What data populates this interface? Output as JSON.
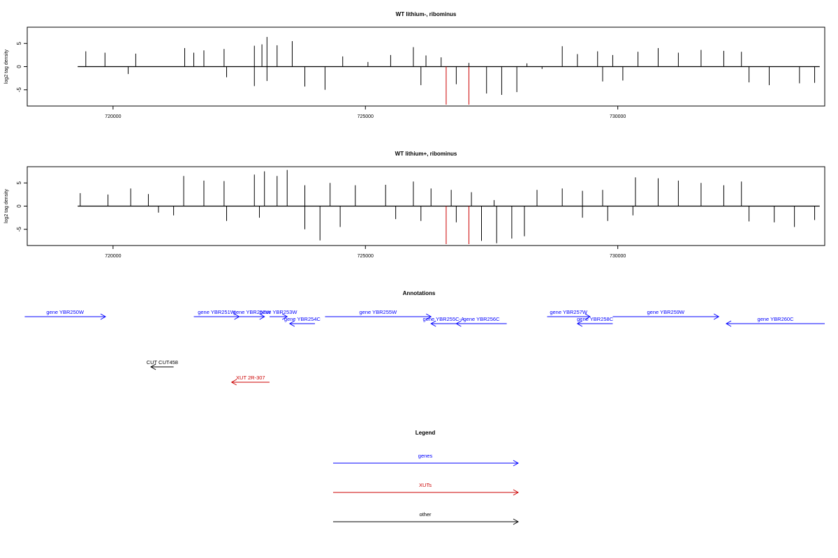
{
  "chart_data": [
    {
      "type": "bar",
      "title": "WT lithium-, ribominus",
      "ylabel": "log2 tag density",
      "xlim": [
        718300,
        734100
      ],
      "ylim": [
        -8.5,
        8.5
      ],
      "xticks": [
        720000,
        725000,
        730000
      ],
      "yticks": [
        5,
        0,
        -5
      ],
      "grid": false,
      "series": [
        {
          "strand": "plus",
          "color": "#000000",
          "values": [
            [
              719460,
              3.3
            ],
            [
              719840,
              3.0
            ],
            [
              720450,
              2.8
            ],
            [
              721420,
              4.0
            ],
            [
              721600,
              3.0
            ],
            [
              721800,
              3.5
            ],
            [
              722200,
              3.8
            ],
            [
              722800,
              4.5
            ],
            [
              722950,
              4.8
            ],
            [
              723050,
              6.4
            ],
            [
              723250,
              4.6
            ],
            [
              723550,
              5.5
            ],
            [
              724550,
              2.2
            ],
            [
              725050,
              1.0
            ],
            [
              725500,
              2.5
            ],
            [
              725950,
              4.2
            ],
            [
              726200,
              2.4
            ],
            [
              726500,
              2.0
            ],
            [
              727050,
              0.8
            ],
            [
              728200,
              0.7
            ],
            [
              728900,
              4.4
            ],
            [
              729200,
              2.7
            ],
            [
              729600,
              3.3
            ],
            [
              729900,
              2.5
            ],
            [
              730400,
              3.2
            ],
            [
              730800,
              4.0
            ],
            [
              731200,
              3.0
            ],
            [
              731650,
              3.6
            ],
            [
              732100,
              3.4
            ],
            [
              732450,
              3.2
            ]
          ]
        },
        {
          "strand": "minus",
          "color": "#000000",
          "values": [
            [
              720300,
              -1.6
            ],
            [
              722250,
              -2.3
            ],
            [
              722800,
              -4.2
            ],
            [
              723050,
              -3.1
            ],
            [
              723800,
              -4.3
            ],
            [
              724200,
              -5.0
            ],
            [
              726100,
              -4.0
            ],
            [
              726800,
              -3.8
            ],
            [
              727400,
              -5.8
            ],
            [
              727700,
              -6.1
            ],
            [
              728000,
              -5.5
            ],
            [
              728500,
              -0.5
            ],
            [
              729700,
              -3.2
            ],
            [
              730100,
              -3.0
            ],
            [
              732600,
              -3.4
            ],
            [
              733000,
              -4.0
            ],
            [
              733600,
              -3.6
            ],
            [
              733900,
              -3.5
            ]
          ]
        },
        {
          "strand": "minus",
          "color": "#cc0000",
          "values": [
            [
              726600,
              -8.2
            ],
            [
              727050,
              -8.2
            ]
          ]
        }
      ]
    },
    {
      "type": "bar",
      "title": "WT lithium+, ribominus",
      "ylabel": "log2 tag density",
      "xlim": [
        718300,
        734100
      ],
      "ylim": [
        -8.5,
        8.5
      ],
      "xticks": [
        720000,
        725000,
        730000
      ],
      "yticks": [
        5,
        0,
        -5
      ],
      "grid": false,
      "series": [
        {
          "strand": "plus",
          "color": "#000000",
          "values": [
            [
              719350,
              2.8
            ],
            [
              719900,
              2.5
            ],
            [
              720350,
              3.8
            ],
            [
              720700,
              2.6
            ],
            [
              721400,
              6.5
            ],
            [
              721800,
              5.5
            ],
            [
              722200,
              5.4
            ],
            [
              722800,
              6.8
            ],
            [
              723000,
              7.5
            ],
            [
              723250,
              6.5
            ],
            [
              723450,
              7.8
            ],
            [
              723800,
              4.5
            ],
            [
              724300,
              5.0
            ],
            [
              724800,
              4.5
            ],
            [
              725400,
              4.6
            ],
            [
              725950,
              5.3
            ],
            [
              726300,
              3.8
            ],
            [
              726700,
              3.5
            ],
            [
              727100,
              3.0
            ],
            [
              727550,
              1.3
            ],
            [
              728400,
              3.5
            ],
            [
              728900,
              3.8
            ],
            [
              729300,
              3.3
            ],
            [
              729700,
              3.5
            ],
            [
              730350,
              6.2
            ],
            [
              730800,
              6.0
            ],
            [
              731200,
              5.5
            ],
            [
              731650,
              5.0
            ],
            [
              732100,
              4.5
            ],
            [
              732450,
              5.3
            ]
          ]
        },
        {
          "strand": "minus",
          "color": "#000000",
          "values": [
            [
              720900,
              -1.4
            ],
            [
              721200,
              -2.0
            ],
            [
              722250,
              -3.2
            ],
            [
              722900,
              -2.5
            ],
            [
              723800,
              -5.0
            ],
            [
              724100,
              -7.4
            ],
            [
              724500,
              -4.5
            ],
            [
              725600,
              -2.8
            ],
            [
              726100,
              -3.2
            ],
            [
              726800,
              -3.5
            ],
            [
              727300,
              -7.5
            ],
            [
              727600,
              -8.0
            ],
            [
              727900,
              -7.0
            ],
            [
              728150,
              -6.5
            ],
            [
              729300,
              -2.5
            ],
            [
              729800,
              -3.2
            ],
            [
              730300,
              -2.0
            ],
            [
              732600,
              -3.3
            ],
            [
              733100,
              -3.5
            ],
            [
              733500,
              -4.5
            ],
            [
              733900,
              -3.0
            ]
          ]
        },
        {
          "strand": "minus",
          "color": "#cc0000",
          "values": [
            [
              726600,
              -8.2
            ],
            [
              727050,
              -8.2
            ]
          ]
        }
      ]
    }
  ],
  "annotations": {
    "title": "Annotations",
    "items": [
      {
        "label": "gene YBR250W",
        "color": "#0000ff",
        "x1": 718250,
        "x2": 719850,
        "dir": "right",
        "row": 0
      },
      {
        "label": "gene YBR251W",
        "color": "#0000ff",
        "x1": 721600,
        "x2": 722500,
        "dir": "right",
        "row": 0
      },
      {
        "label": "gene YBR252W",
        "color": "#0000ff",
        "x1": 722500,
        "x2": 723000,
        "dir": "right",
        "row": 0
      },
      {
        "label": "gene YBR253W",
        "color": "#0000ff",
        "x1": 723100,
        "x2": 723450,
        "dir": "right",
        "row": 0
      },
      {
        "label": "gene YBR254C",
        "color": "#0000ff",
        "x1": 723500,
        "x2": 724000,
        "dir": "left",
        "row": 1
      },
      {
        "label": "gene YBR255W",
        "color": "#0000ff",
        "x1": 724200,
        "x2": 726300,
        "dir": "right",
        "row": 0
      },
      {
        "label": "gene YBR255C-A",
        "color": "#0000ff",
        "x1": 726300,
        "x2": 726800,
        "dir": "left",
        "row": 1
      },
      {
        "label": "gene YBR256C",
        "color": "#0000ff",
        "x1": 726800,
        "x2": 727800,
        "dir": "left",
        "row": 1
      },
      {
        "label": "gene YBR257W",
        "color": "#0000ff",
        "x1": 728600,
        "x2": 729450,
        "dir": "right",
        "row": 0
      },
      {
        "label": "gene YBR258C",
        "color": "#0000ff",
        "x1": 729200,
        "x2": 729900,
        "dir": "left",
        "row": 1
      },
      {
        "label": "gene YBR259W",
        "color": "#0000ff",
        "x1": 729900,
        "x2": 732000,
        "dir": "right",
        "row": 0
      },
      {
        "label": "gene YBR260C",
        "color": "#0000ff",
        "x1": 732150,
        "x2": 734100,
        "dir": "left",
        "row": 1
      },
      {
        "label": "CUT CUT458",
        "color": "#000000",
        "x1": 720750,
        "x2": 721200,
        "dir": "left",
        "row": 2
      },
      {
        "label": "XUT 2R-307",
        "color": "#cc0000",
        "x1": 722350,
        "x2": 723100,
        "dir": "left",
        "row": 3
      }
    ]
  },
  "legend": {
    "title": "Legend",
    "items": [
      {
        "label": "genes",
        "color": "#0000ff"
      },
      {
        "label": "XUTs",
        "color": "#cc0000"
      },
      {
        "label": "other",
        "color": "#000000"
      }
    ]
  }
}
